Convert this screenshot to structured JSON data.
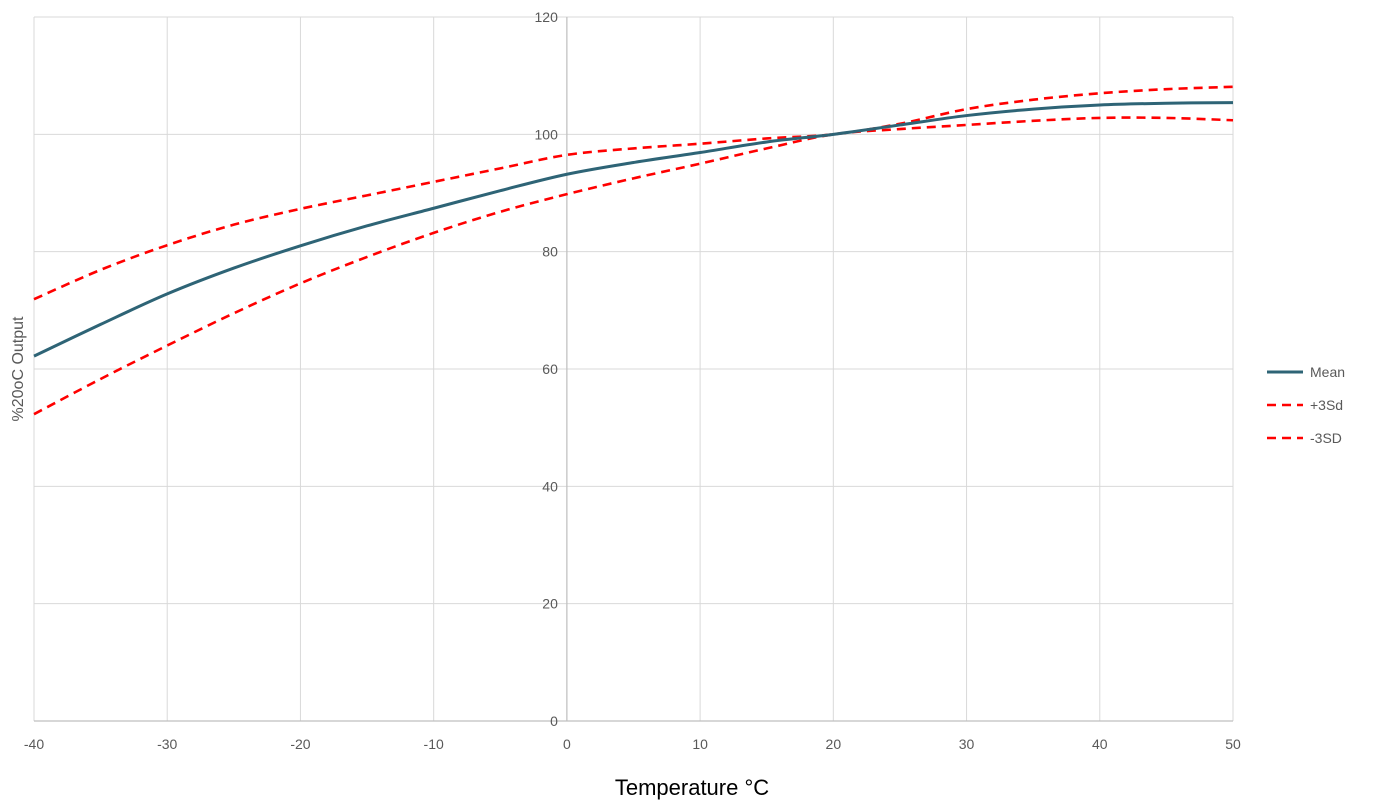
{
  "chart_data": {
    "type": "line",
    "title": "",
    "xlabel": "Temperature °C",
    "ylabel": "%20oC Output",
    "xlim": [
      -40,
      50
    ],
    "ylim": [
      0,
      120
    ],
    "x_ticks": [
      -40,
      -30,
      -20,
      -10,
      0,
      10,
      20,
      30,
      40,
      50
    ],
    "y_ticks": [
      0,
      20,
      40,
      60,
      80,
      100,
      120
    ],
    "grid": true,
    "legend_position": "right",
    "series": [
      {
        "name": "Mean",
        "color": "#2e6476",
        "style": "solid",
        "x": [
          -40,
          -35,
          -30,
          -25,
          -20,
          -15,
          -10,
          -5,
          0,
          5,
          10,
          15,
          20,
          25,
          30,
          35,
          40,
          45,
          50
        ],
        "y": [
          62.2,
          67.6,
          72.8,
          77.2,
          81.0,
          84.4,
          87.4,
          90.4,
          93.2,
          95.2,
          96.9,
          98.7,
          100.0,
          101.6,
          103.2,
          104.3,
          105.0,
          105.3,
          105.4
        ]
      },
      {
        "name": "+3Sd",
        "color": "#ff0000",
        "style": "dashed",
        "x": [
          -40,
          -35,
          -30,
          -25,
          -20,
          -15,
          -10,
          -5,
          0,
          5,
          10,
          15,
          20,
          25,
          30,
          35,
          40,
          45,
          50
        ],
        "y": [
          71.9,
          76.9,
          81.1,
          84.6,
          87.3,
          89.6,
          91.9,
          94.2,
          96.5,
          97.6,
          98.4,
          99.3,
          100.0,
          101.8,
          104.3,
          105.9,
          107.0,
          107.7,
          108.1
        ]
      },
      {
        "name": "-3SD",
        "color": "#ff0000",
        "style": "dashed",
        "x": [
          -40,
          -35,
          -30,
          -25,
          -20,
          -15,
          -10,
          -5,
          0,
          5,
          10,
          15,
          20,
          25,
          30,
          35,
          40,
          45,
          50
        ],
        "y": [
          52.3,
          58.3,
          64.0,
          69.5,
          74.6,
          79.1,
          83.2,
          86.8,
          89.8,
          92.5,
          95.0,
          97.6,
          100.0,
          100.9,
          101.6,
          102.3,
          102.8,
          102.8,
          102.4
        ]
      }
    ]
  }
}
